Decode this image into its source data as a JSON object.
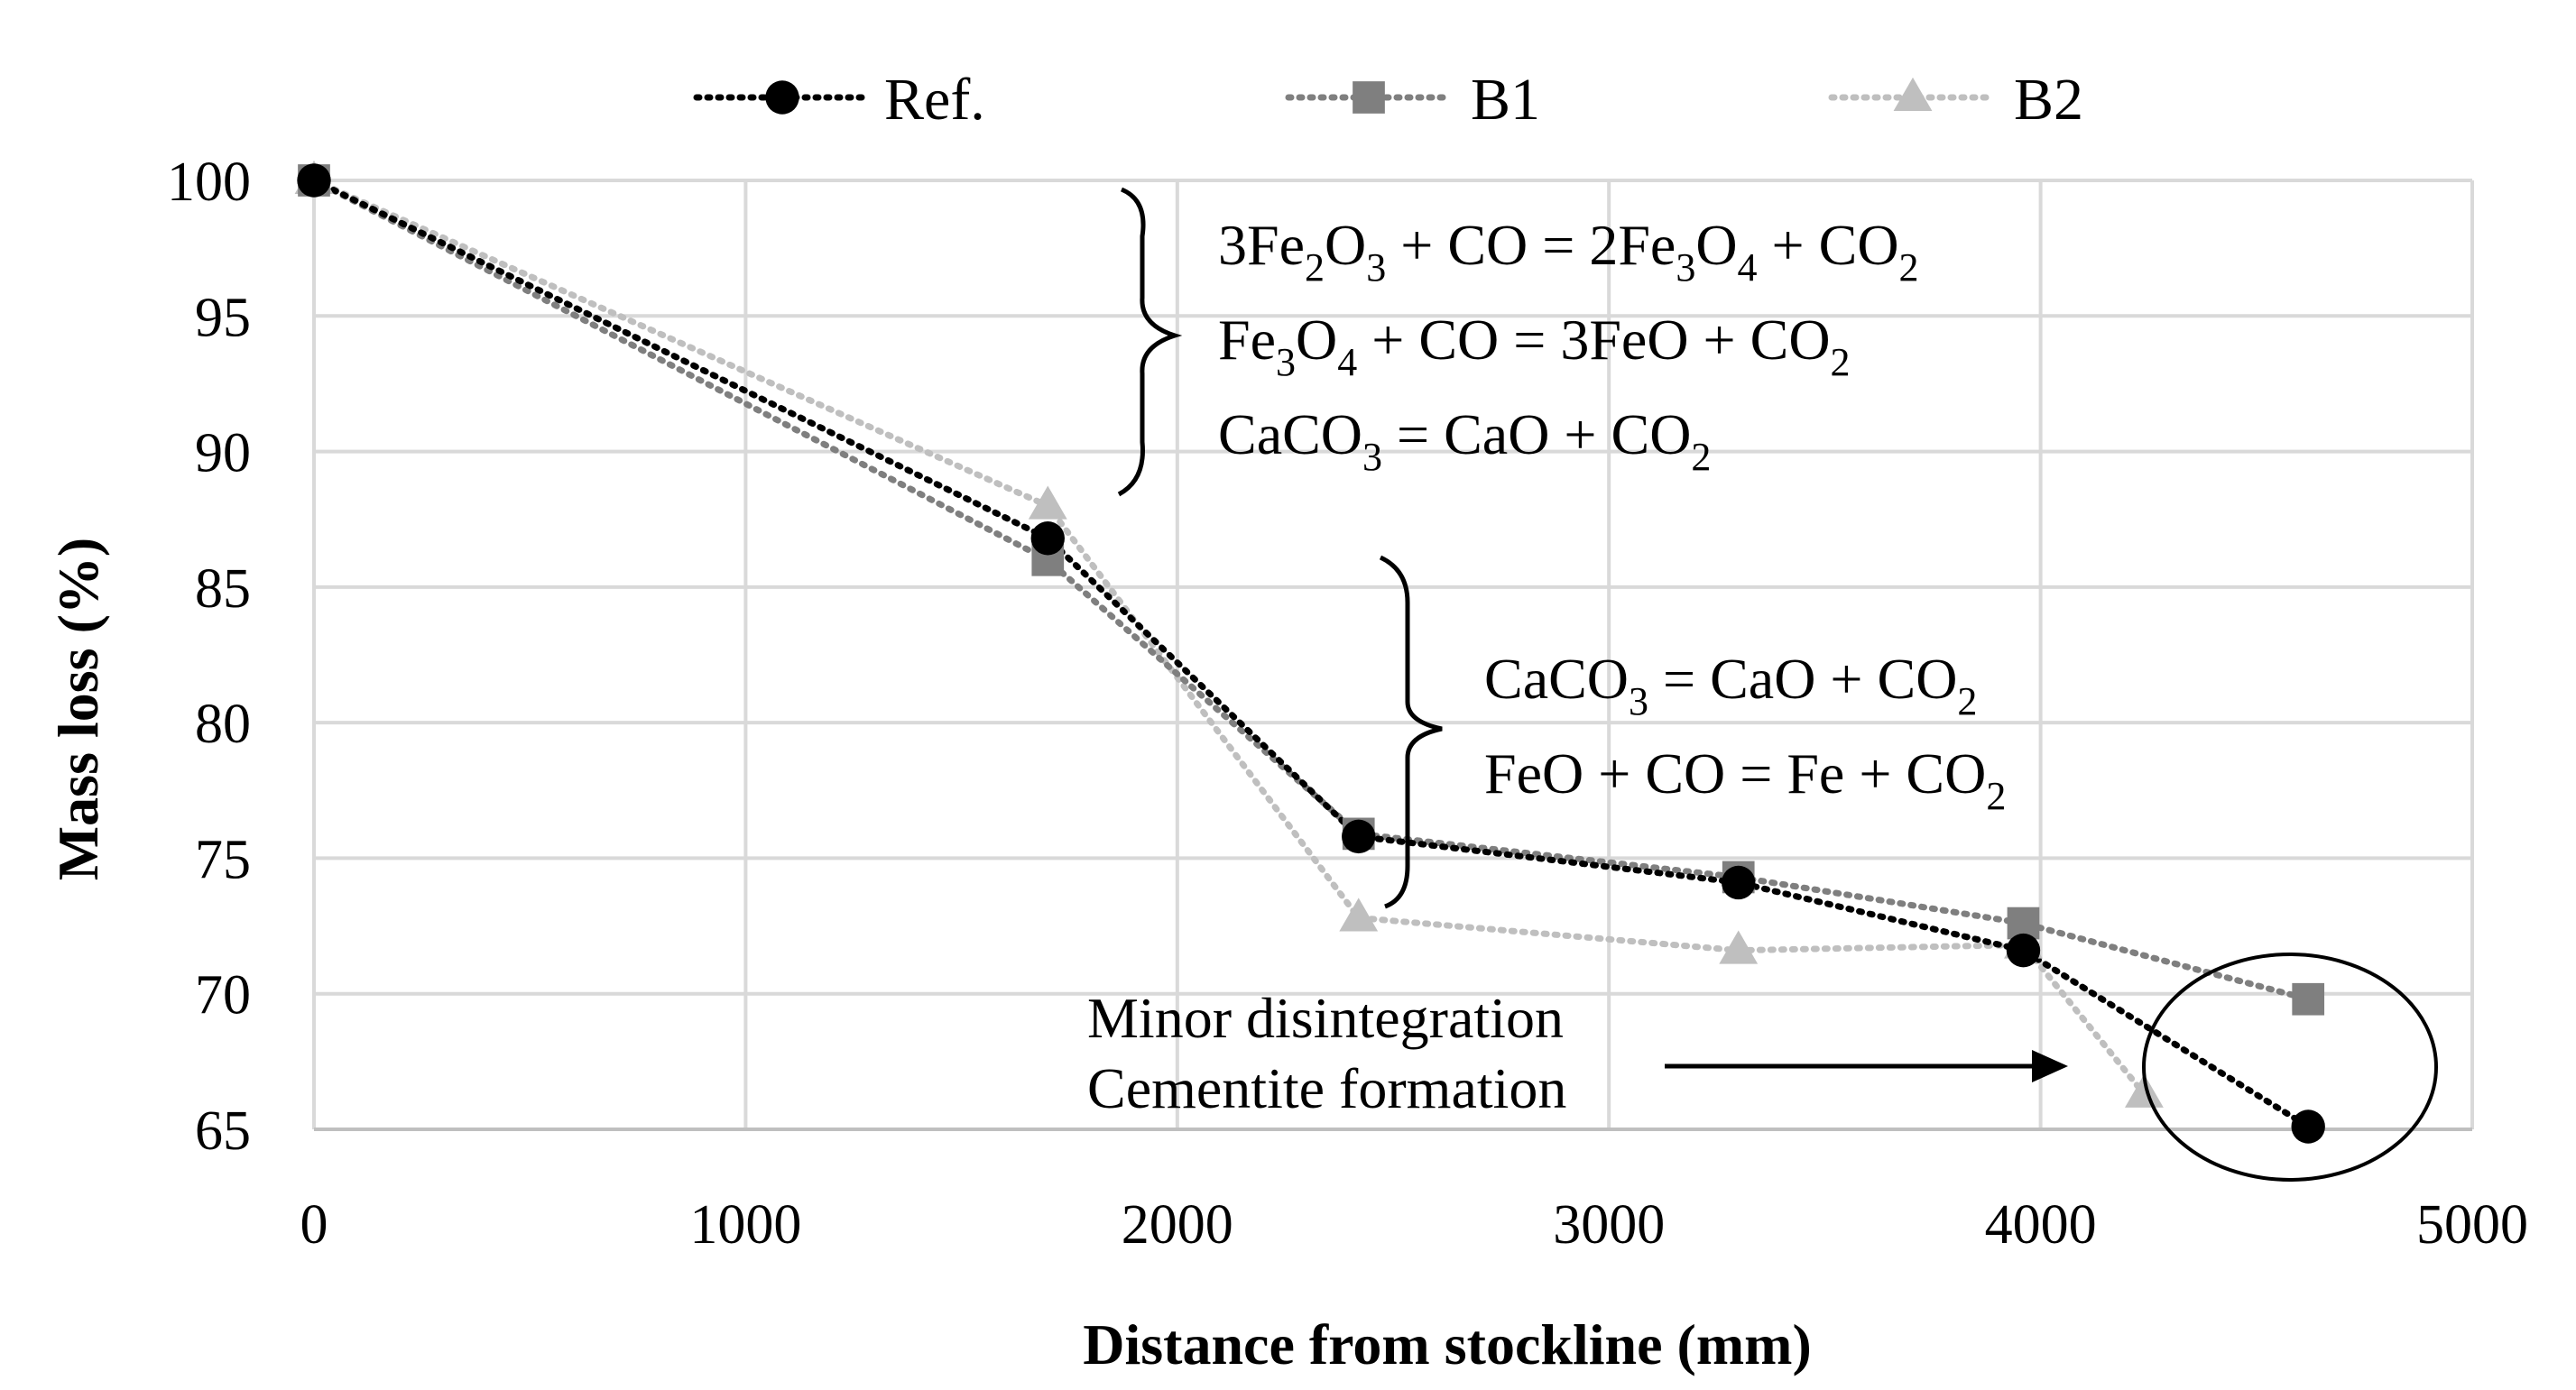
{
  "chart_data": {
    "type": "line",
    "title": "",
    "xlabel": "Distance from stockline (mm)",
    "ylabel": "Mass loss (%)",
    "xlim": [
      0,
      5000
    ],
    "ylim": [
      65,
      100
    ],
    "x_ticks": [
      "0",
      "1000",
      "2000",
      "3000",
      "4000",
      "5000"
    ],
    "y_ticks": [
      "100",
      "95",
      "90",
      "85",
      "80",
      "75",
      "70",
      "65"
    ],
    "grid": true,
    "legend_position": "top",
    "series": [
      {
        "name": "Ref.",
        "marker": "circle",
        "color": "#000000",
        "x": [
          0,
          1700,
          2420,
          3300,
          3960,
          4620
        ],
        "y": [
          100,
          86.8,
          75.8,
          74.1,
          71.6,
          65.1
        ]
      },
      {
        "name": "B1",
        "marker": "square",
        "color": "#7f7f7f",
        "x": [
          0,
          1700,
          2420,
          3300,
          3960,
          4620
        ],
        "y": [
          100,
          86.0,
          75.9,
          74.3,
          72.6,
          69.8
        ]
      },
      {
        "name": "B2",
        "marker": "triangle",
        "color": "#bfbfbf",
        "x": [
          0,
          1700,
          2420,
          3300,
          3960,
          4240
        ],
        "y": [
          100,
          88.0,
          72.8,
          71.6,
          71.8,
          66.3
        ]
      }
    ],
    "annotations": {
      "equations_group_1": [
        [
          {
            "t": "3Fe"
          },
          {
            "t": "2",
            "s": "sub"
          },
          {
            "t": "O"
          },
          {
            "t": "3",
            "s": "sub"
          },
          {
            "t": " + CO = 2Fe"
          },
          {
            "t": "3",
            "s": "sub"
          },
          {
            "t": "O"
          },
          {
            "t": "4",
            "s": "sub"
          },
          {
            "t": " + CO"
          },
          {
            "t": "2",
            "s": "sub"
          }
        ],
        [
          {
            "t": "Fe"
          },
          {
            "t": "3",
            "s": "sub"
          },
          {
            "t": "O"
          },
          {
            "t": "4",
            "s": "sub"
          },
          {
            "t": " + CO = 3FeO + CO"
          },
          {
            "t": "2",
            "s": "sub"
          }
        ],
        [
          {
            "t": "CaCO"
          },
          {
            "t": "3",
            "s": "sub"
          },
          {
            "t": " = CaO + CO"
          },
          {
            "t": "2",
            "s": "sub"
          }
        ]
      ],
      "equations_group_2": [
        [
          {
            "t": "CaCO"
          },
          {
            "t": "3",
            "s": "sub"
          },
          {
            "t": " = CaO + CO"
          },
          {
            "t": "2",
            "s": "sub"
          }
        ],
        [
          {
            "t": "FeO + CO = Fe + CO"
          },
          {
            "t": "2",
            "s": "sub"
          }
        ]
      ],
      "note_lines": [
        "Minor disintegration",
        "Cementite formation"
      ]
    }
  }
}
